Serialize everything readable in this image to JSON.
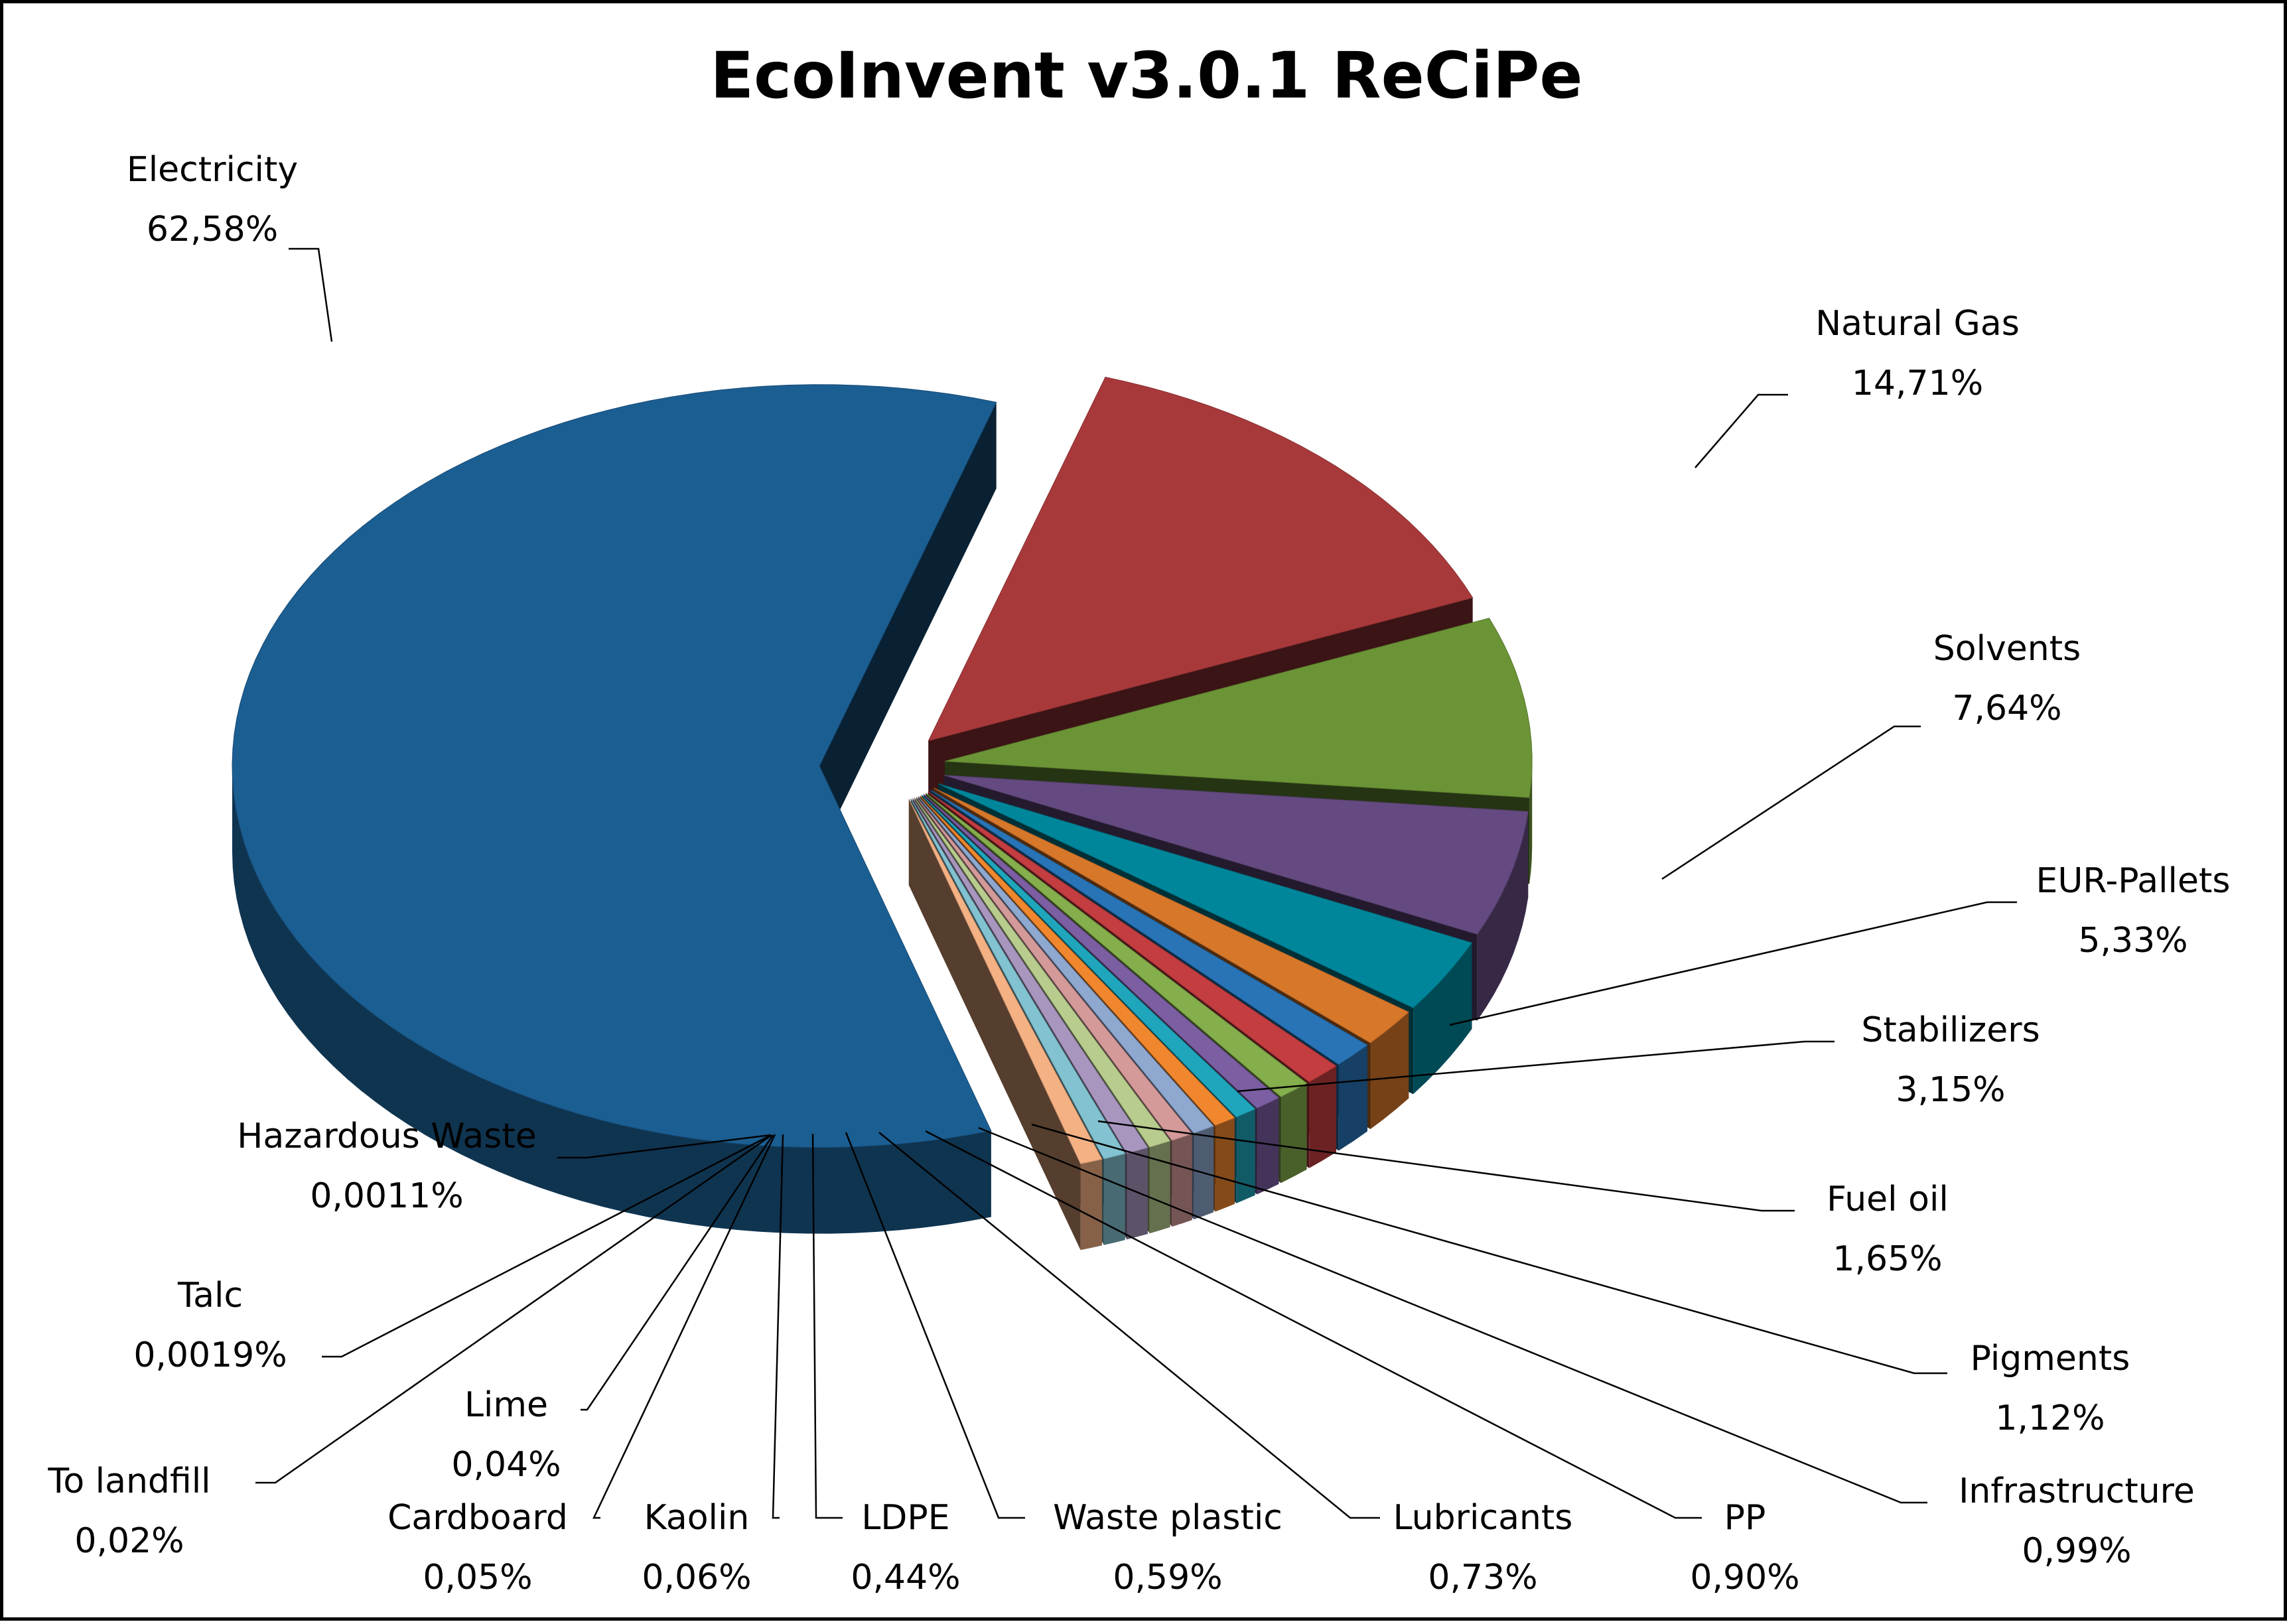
{
  "chart_data": {
    "type": "pie",
    "title": "EcoInvent v3.0.1 ReCiPe",
    "exploded": true,
    "three_d": true,
    "slices": [
      {
        "name": "Electricity",
        "value": 62.58,
        "label": "62,58%",
        "color": "#1B5E92"
      },
      {
        "name": "Natural Gas",
        "value": 14.71,
        "label": "14,71%",
        "color": "#A8393B"
      },
      {
        "name": "Solvents",
        "value": 7.64,
        "label": "7,64%",
        "color": "#6B9436"
      },
      {
        "name": "EUR-Pallets",
        "value": 5.33,
        "label": "5,33%",
        "color": "#644A80"
      },
      {
        "name": "Stabilizers",
        "value": 3.15,
        "label": "3,15%",
        "color": "#00869A"
      },
      {
        "name": "Fuel oil",
        "value": 1.65,
        "label": "1,65%",
        "color": "#D7772A"
      },
      {
        "name": "Pigments",
        "value": 1.12,
        "label": "1,12%",
        "color": "#2874B7"
      },
      {
        "name": "Infrastructure",
        "value": 0.99,
        "label": "0,99%",
        "color": "#C43D40"
      },
      {
        "name": "PP",
        "value": 0.9,
        "label": "0,90%",
        "color": "#85AE4C"
      },
      {
        "name": "Lubricants",
        "value": 0.73,
        "label": "0,73%",
        "color": "#7C5EA3"
      },
      {
        "name": "Waste plastic",
        "value": 0.59,
        "label": "0,59%",
        "color": "#1FA6BC"
      },
      {
        "name": "LDPE",
        "value": 0.44,
        "label": "0,44%",
        "color": "#F0872E"
      },
      {
        "name": "Kaolin",
        "value": 0.06,
        "label": "0,06%",
        "color": "#8EA8D0"
      },
      {
        "name": "Cardboard",
        "value": 0.05,
        "label": "0,05%",
        "color": "#D49A99"
      },
      {
        "name": "Lime",
        "value": 0.04,
        "label": "0,04%",
        "color": "#B8CC8E"
      },
      {
        "name": "To landfill",
        "value": 0.02,
        "label": "0,02%",
        "color": "#A896BF"
      },
      {
        "name": "Talc",
        "value": 0.0019,
        "label": "0,0019%",
        "color": "#82C2D1"
      },
      {
        "name": "Hazardous Waste",
        "value": 0.0011,
        "label": "0,0011%",
        "color": "#F4B183"
      }
    ]
  }
}
